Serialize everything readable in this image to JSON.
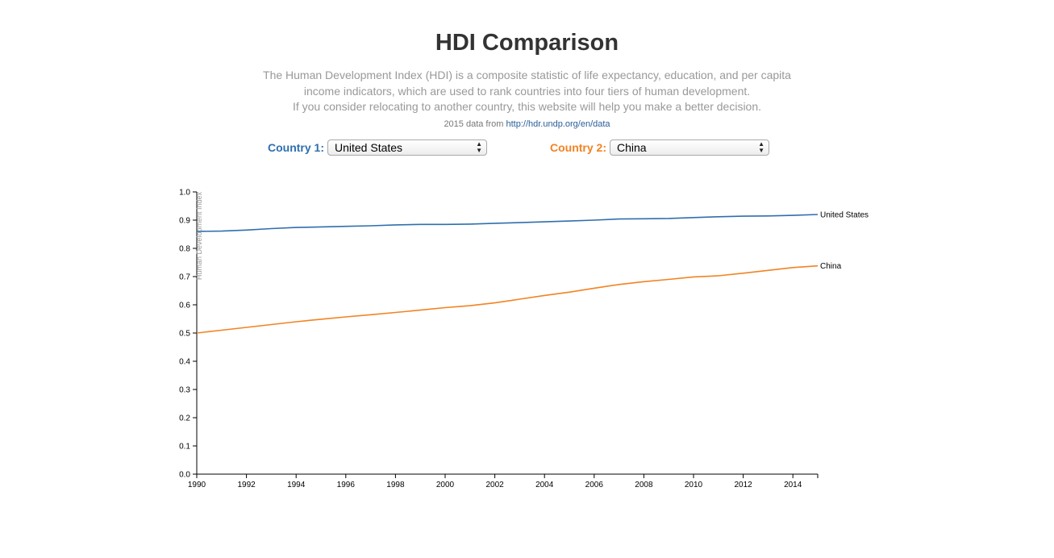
{
  "header": {
    "title": "HDI Comparison",
    "description_lines": [
      "The Human Development Index (HDI) is a composite statistic of life expectancy, education, and per capita",
      "income indicators, which are used to rank countries into four tiers of human development.",
      "If you consider relocating to another country, this website will help you make a better decision."
    ],
    "source_prefix": "2015 data from",
    "source_link": "http://hdr.undp.org/en/data"
  },
  "selectors": {
    "country1": {
      "label": "Country 1:",
      "value": "United States",
      "color": "#2f6fad"
    },
    "country2": {
      "label": "Country 2:",
      "value": "China",
      "color": "#f28322"
    }
  },
  "icons": {
    "select_arrows": "select-updown-arrows-icon"
  },
  "chart_data": {
    "type": "line",
    "title": "",
    "ylabel": "Human Development Index",
    "xlabel": "",
    "xlim": [
      1990,
      2015
    ],
    "ylim": [
      0,
      1.0
    ],
    "x_ticks": [
      1990,
      1992,
      1994,
      1996,
      1998,
      2000,
      2002,
      2004,
      2006,
      2008,
      2010,
      2012,
      2014
    ],
    "y_ticks": [
      "0.0",
      "0.1",
      "0.2",
      "0.3",
      "0.4",
      "0.5",
      "0.6",
      "0.7",
      "0.8",
      "0.9",
      "1.0"
    ],
    "grid": false,
    "x": [
      1990,
      1991,
      1992,
      1993,
      1994,
      1995,
      1996,
      1997,
      1998,
      1999,
      2000,
      2001,
      2002,
      2003,
      2004,
      2005,
      2006,
      2007,
      2008,
      2009,
      2010,
      2011,
      2012,
      2013,
      2014,
      2015
    ],
    "series": [
      {
        "name": "United States",
        "color": "#2f6fad",
        "values": [
          0.86,
          0.861,
          0.865,
          0.87,
          0.874,
          0.876,
          0.878,
          0.88,
          0.883,
          0.885,
          0.885,
          0.886,
          0.889,
          0.891,
          0.894,
          0.897,
          0.9,
          0.904,
          0.905,
          0.906,
          0.909,
          0.912,
          0.914,
          0.915,
          0.917,
          0.92
        ]
      },
      {
        "name": "China",
        "color": "#f28322",
        "values": [
          0.5,
          0.51,
          0.52,
          0.53,
          0.54,
          0.549,
          0.557,
          0.565,
          0.573,
          0.581,
          0.59,
          0.597,
          0.607,
          0.62,
          0.633,
          0.645,
          0.659,
          0.672,
          0.682,
          0.69,
          0.699,
          0.703,
          0.712,
          0.722,
          0.732,
          0.738
        ]
      }
    ]
  }
}
